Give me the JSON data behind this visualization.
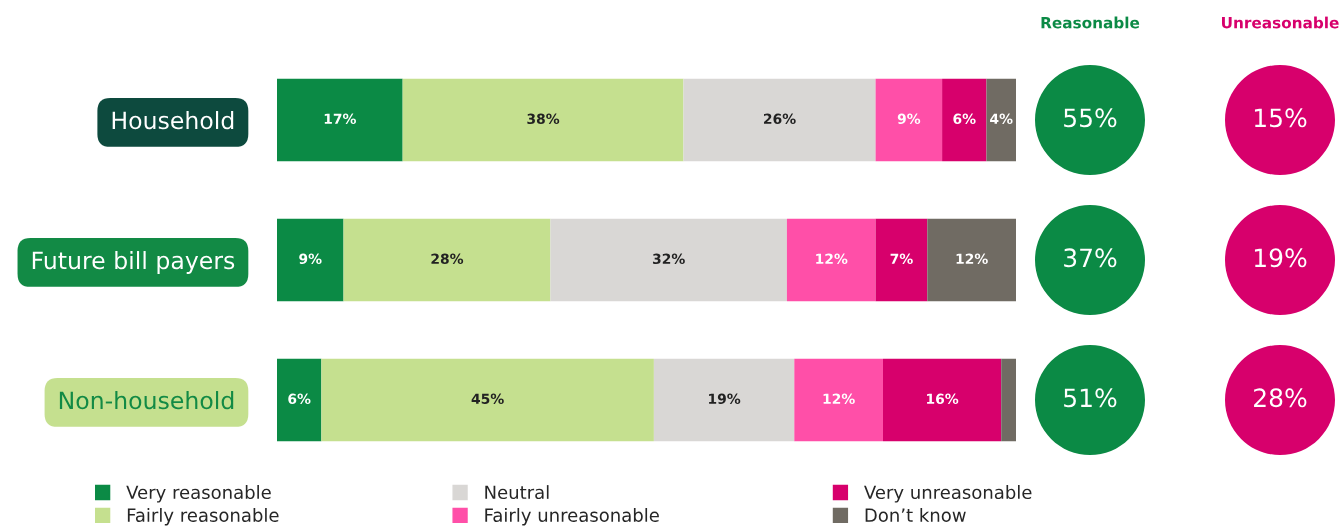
{
  "chart_data": {
    "type": "bar",
    "orientation": "horizontal",
    "stacked": true,
    "categories": [
      "Household",
      "Future bill payers",
      "Non-household"
    ],
    "xlim": [
      0,
      100
    ],
    "tick_labels": "y",
    "legend": "bottom",
    "grid": false,
    "series": [
      {
        "name": "Very reasonable",
        "color": "#0b8a45",
        "values": [
          17,
          9,
          6
        ],
        "value_labels": [
          "17%",
          "9%",
          "6%"
        ]
      },
      {
        "name": "Fairly reasonable",
        "color": "#c5e08f",
        "values": [
          38,
          28,
          45
        ],
        "value_labels": [
          "38%",
          "28%",
          "45%"
        ]
      },
      {
        "name": "Neutral",
        "color": "#d9d7d5",
        "values": [
          26,
          32,
          19
        ],
        "value_labels": [
          "26%",
          "32%",
          "19%"
        ]
      },
      {
        "name": "Fairly unreasonable",
        "color": "#ff4fa8",
        "values": [
          9,
          12,
          12
        ],
        "value_labels": [
          "9%",
          "12%",
          "12%"
        ]
      },
      {
        "name": "Very unreasonable",
        "color": "#d7006c",
        "values": [
          6,
          7,
          16
        ],
        "value_labels": [
          "6%",
          "7%",
          "16%"
        ]
      },
      {
        "name": "Don’t know",
        "color": "#706b63",
        "values": [
          4,
          12,
          2
        ],
        "value_labels": [
          "4%",
          "12%",
          null
        ]
      }
    ],
    "annotations": [
      "Reasonable",
      "Unreasonable",
      "55%",
      "15%",
      "37%",
      "19%",
      "51%",
      "28%"
    ]
  }
}
